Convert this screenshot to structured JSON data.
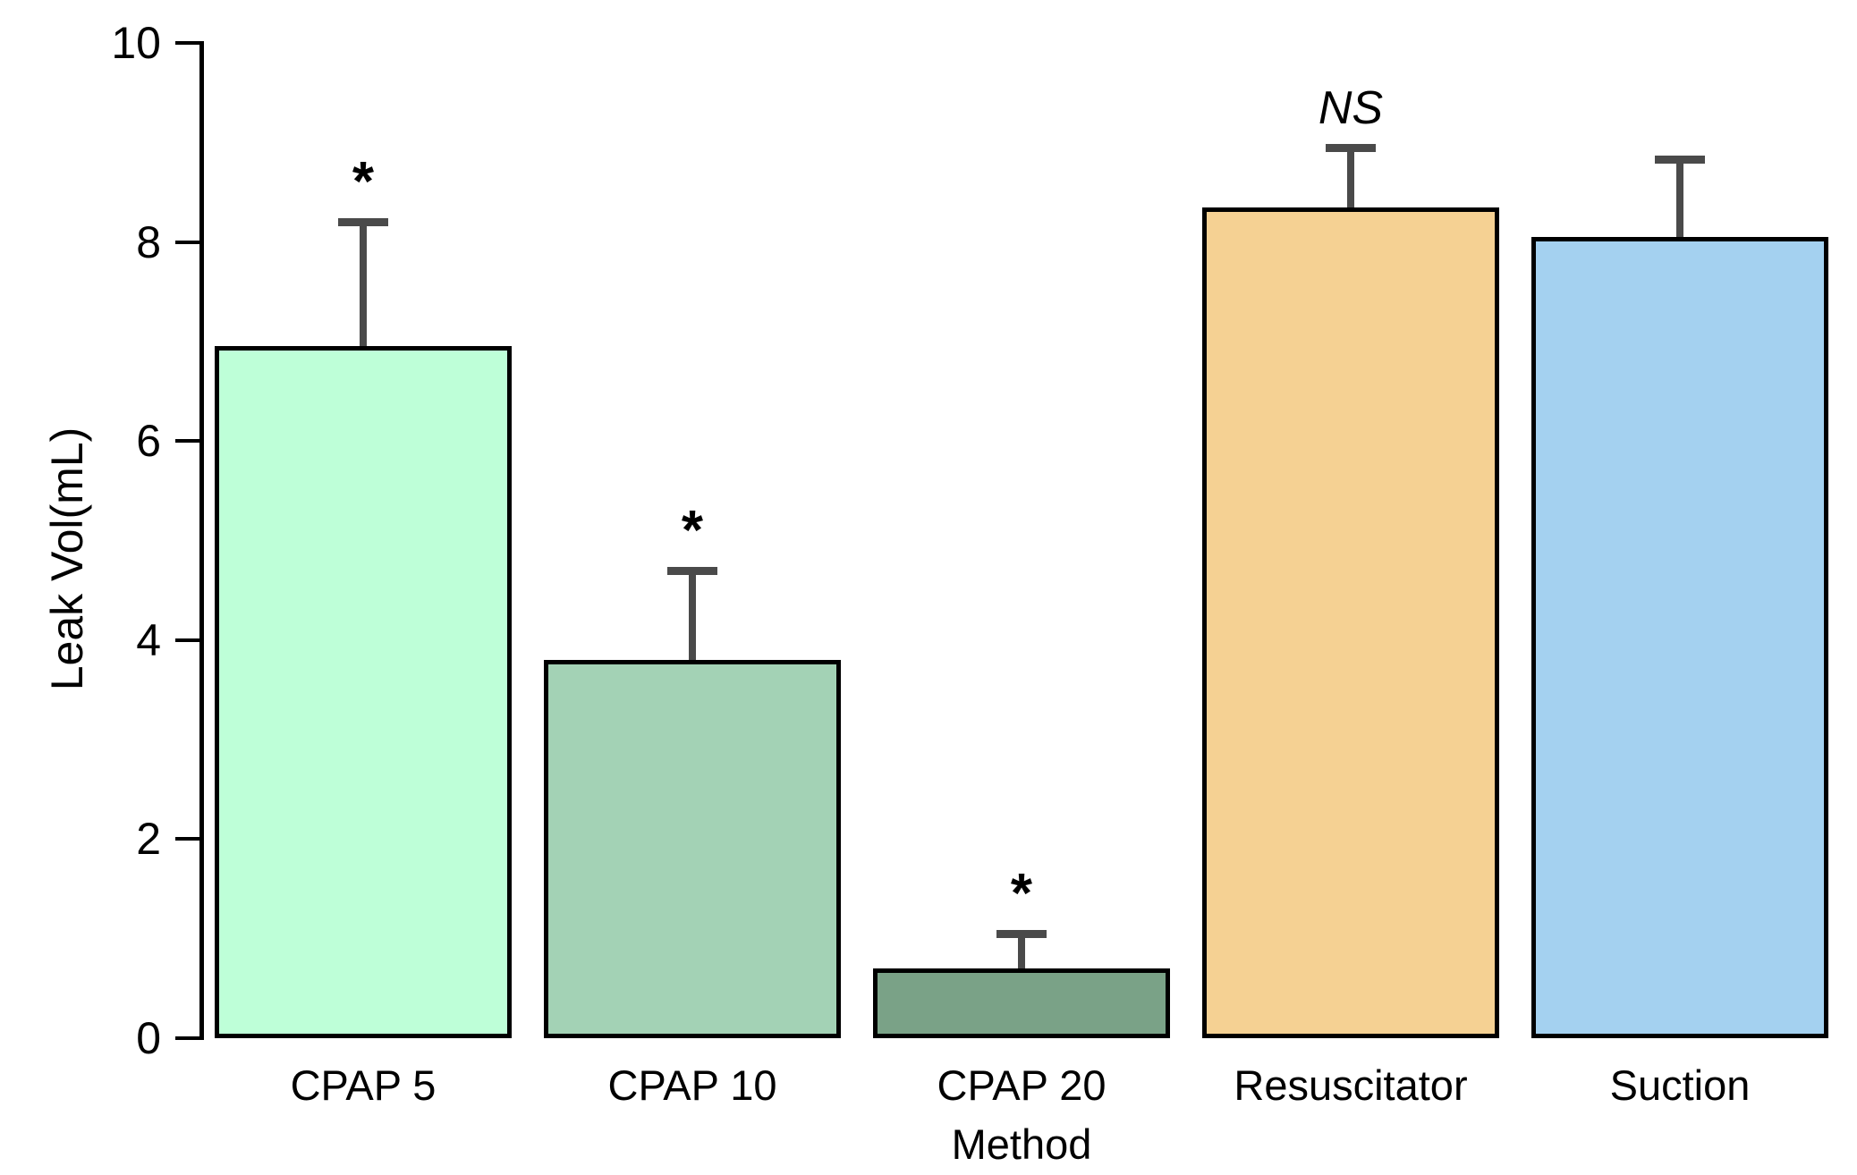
{
  "chart_data": {
    "type": "bar",
    "title": "",
    "xlabel": "Method",
    "ylabel": "Leak Vol(mL)",
    "categories": [
      "CPAP 5",
      "CPAP 10",
      "CPAP 20",
      "Resuscitator",
      "Suction"
    ],
    "values": [
      6.95,
      3.8,
      0.7,
      8.35,
      8.05
    ],
    "error_plus": [
      1.25,
      0.9,
      0.35,
      0.6,
      0.78
    ],
    "annotations": [
      "*",
      "*",
      "*",
      "NS",
      ""
    ],
    "bar_colors": [
      "#beffd8",
      "#a3d2b5",
      "#7aa287",
      "#f5d193",
      "#a4d1f0"
    ],
    "bar_border_color": "#000000",
    "error_bar_color": "#4a4a4a",
    "axis_color": "#000000",
    "ylim": [
      0,
      10
    ],
    "yticks": [
      0,
      2,
      4,
      6,
      8,
      10
    ],
    "grid": false,
    "legend": "none"
  }
}
